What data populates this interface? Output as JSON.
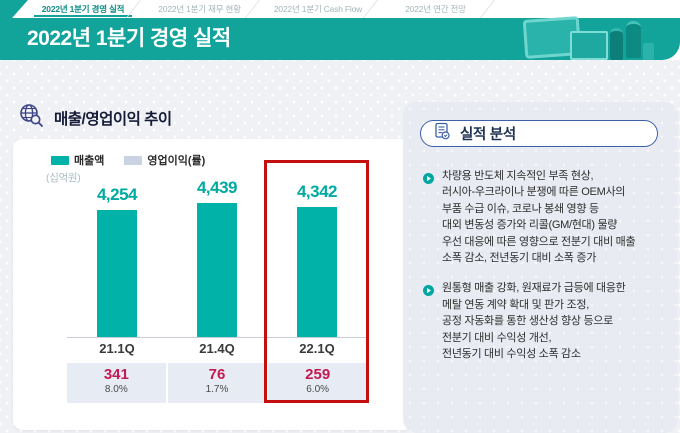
{
  "tabs": [
    {
      "label": "2022년 1분기 경영 실적",
      "active": true
    },
    {
      "label": "2022년 1분기 재무 현황",
      "active": false
    },
    {
      "label": "2022년 1분기 Cash Flow",
      "active": false
    },
    {
      "label": "2022년 연간 전망",
      "active": false
    }
  ],
  "header": {
    "title": "2022년 1분기 경영 실적"
  },
  "section": {
    "title": "매출/영업이익 추이",
    "icon": "globe-magnifier-icon"
  },
  "chart_data": {
    "type": "bar",
    "title": "매출/영업이익 추이",
    "unit_label": "(십억원)",
    "categories": [
      "21.1Q",
      "21.4Q",
      "22.1Q"
    ],
    "series": [
      {
        "name": "매출액",
        "values": [
          4254,
          4439,
          4342
        ],
        "labels": [
          "4,254",
          "4,439",
          "4,342"
        ],
        "color": "#00B2A8"
      },
      {
        "name": "영업이익(률)",
        "values": [
          341,
          76,
          259
        ],
        "labels": [
          "341",
          "76",
          "259"
        ],
        "margins": [
          "8.0%",
          "1.7%",
          "6.0%"
        ],
        "swatch_color": "#C9D3E2",
        "value_text_color": "#C31A52"
      }
    ],
    "highlight_index": 2,
    "highlight_color": "#C40F0F",
    "y_axis_truncated": true,
    "grid": false,
    "legend_position": "top-left"
  },
  "analysis": {
    "title": "실적 분석",
    "icon": "document-check-icon",
    "bullets": [
      {
        "text": "차량용 반도체 지속적인 부족 현상,\n러시아-우크라이나 분쟁에 따른 OEM사의\n부품 수급 이슈, 코로나 봉쇄 영향 등\n대외 변동성 증가와 리콜(GM/현대) 물량\n우선 대응에 따른 영향으로 전분기 대비 매출\n소폭 감소, 전년동기 대비 소폭 증가"
      },
      {
        "text": "원통형 매출 강화, 원재료가 급등에 대응한\n메탈 연동 계약 확대 및 판가 조정,\n공정 자동화를 통한 생산성 향상 등으로\n전분기 대비 수익성 개선,\n전년동기 대비 수익성 소폭 감소"
      }
    ]
  },
  "colors": {
    "header_teal": "#12A39B",
    "bar_teal": "#00B2A8",
    "crimson": "#C31A52",
    "highlight_red": "#C40F0F",
    "panel_bg": "#E8EBF2"
  }
}
